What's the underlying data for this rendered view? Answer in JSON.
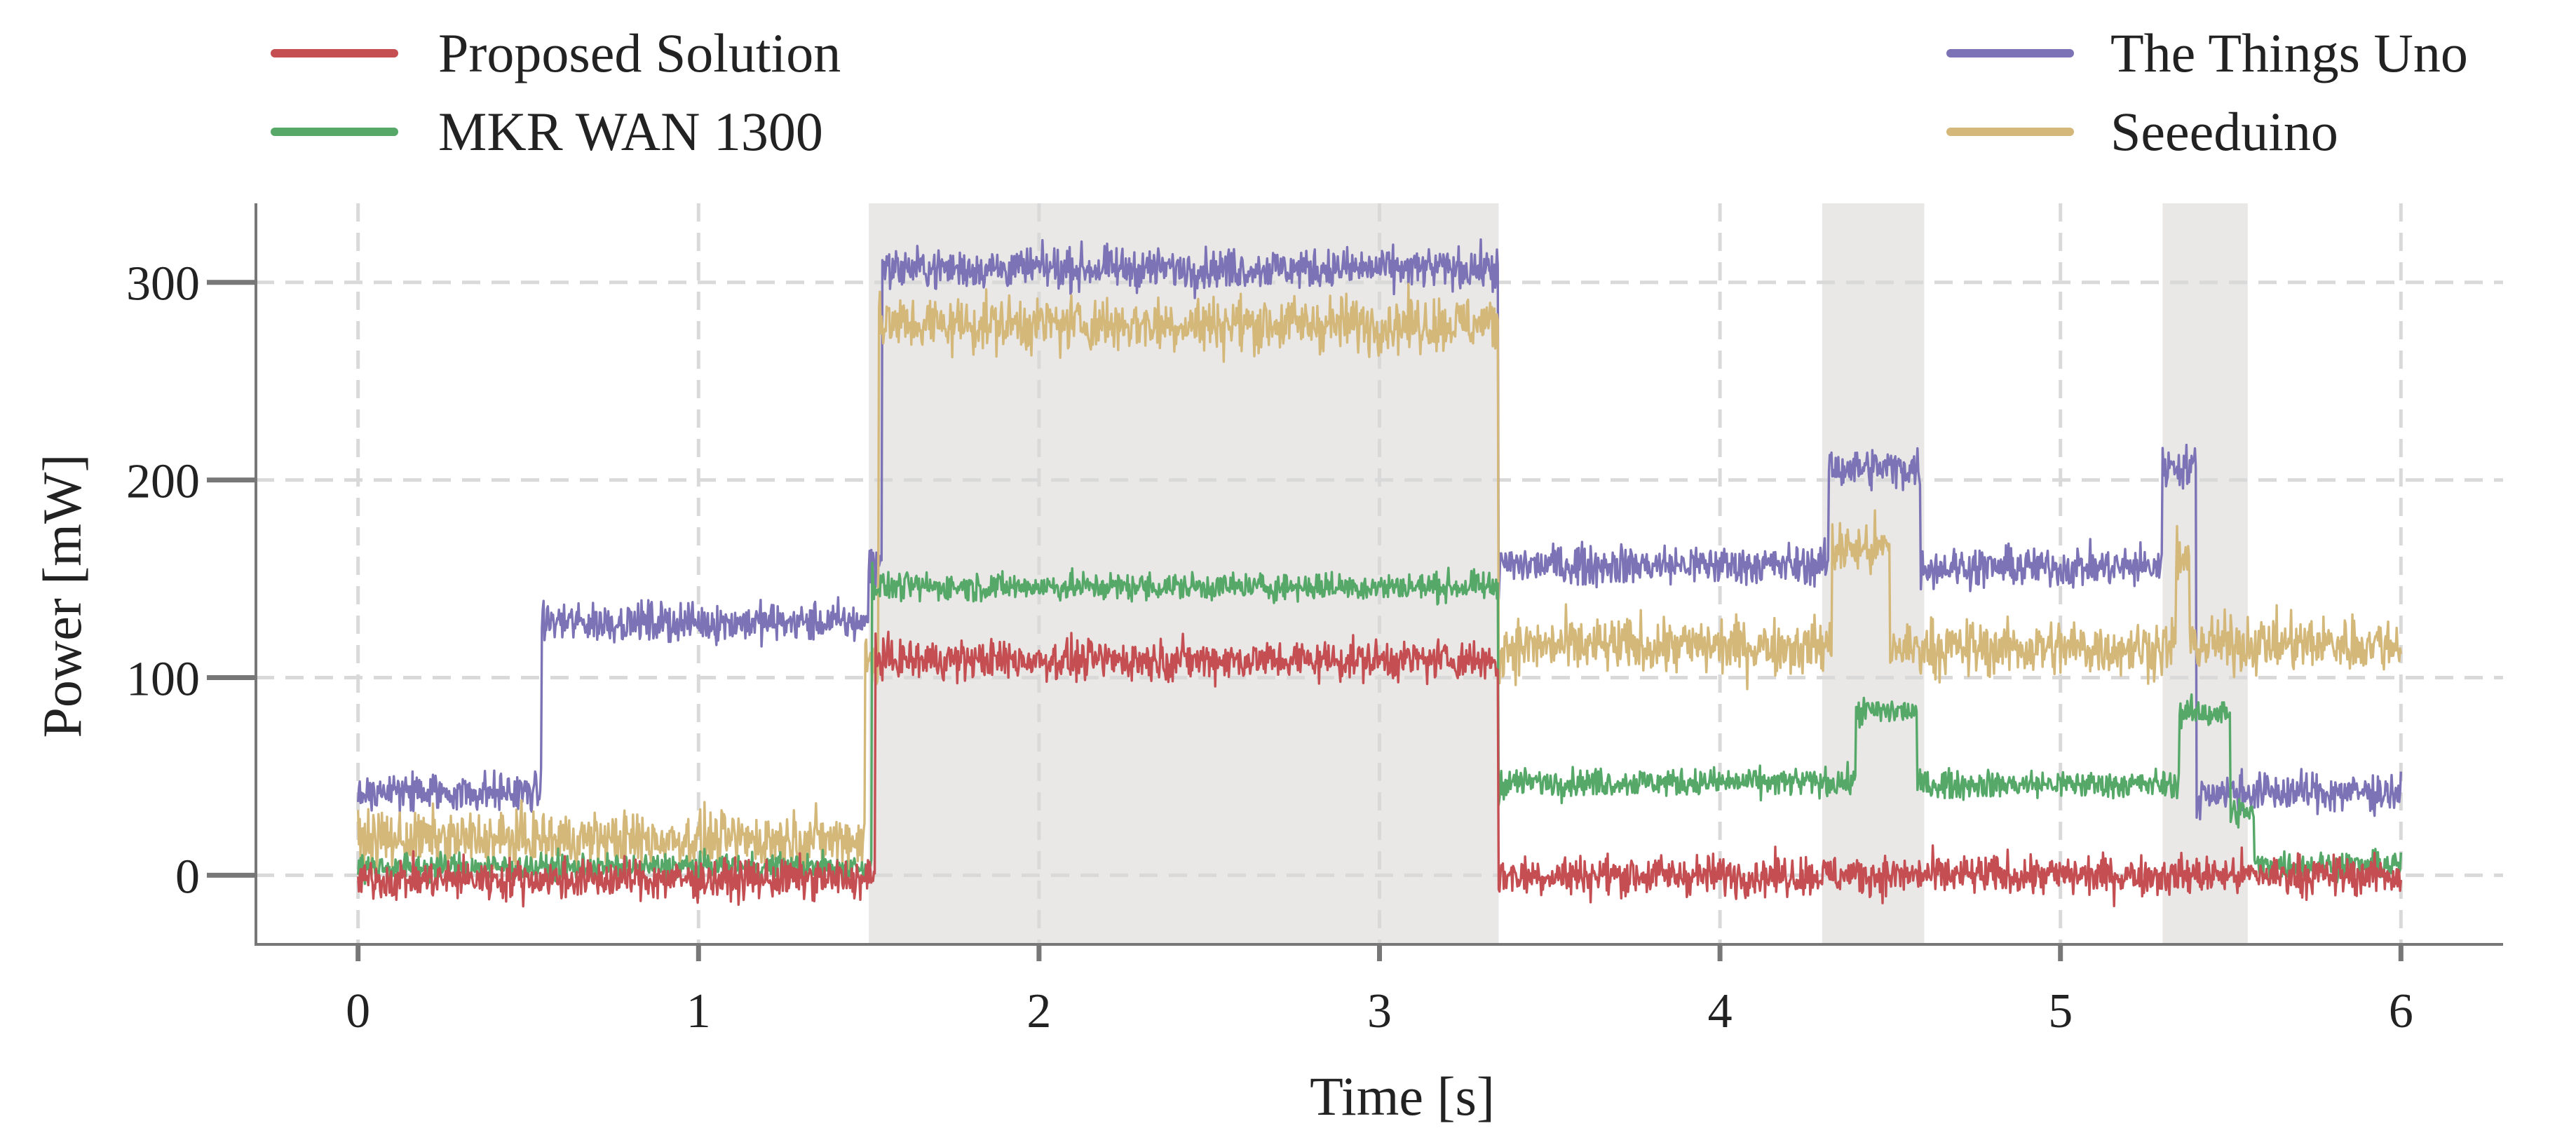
{
  "chart_data": {
    "type": "line",
    "title": "",
    "xlabel": "Time [s]",
    "ylabel": "Power [mW]",
    "xlim": [
      -0.3,
      6.3
    ],
    "ylim": [
      -35,
      340
    ],
    "xticks": [
      0,
      1,
      2,
      3,
      4,
      5,
      6
    ],
    "yticks": [
      0,
      100,
      200,
      300
    ],
    "grid": true,
    "legend_position": "top",
    "shaded_regions": [
      {
        "start": 1.5,
        "end": 3.35,
        "color": "#e9e8e7"
      },
      {
        "start": 4.3,
        "end": 4.6,
        "color": "#e9e8e7"
      },
      {
        "start": 5.3,
        "end": 5.55,
        "color": "#e9e8e7"
      }
    ],
    "series": [
      {
        "name": "The Things Uno",
        "color": "#7b73b5",
        "noise": 5,
        "segments": [
          {
            "start": 0.0,
            "end": 0.54,
            "level": 42
          },
          {
            "start": 0.54,
            "end": 1.5,
            "level": 128
          },
          {
            "start": 1.5,
            "end": 1.54,
            "level": 158
          },
          {
            "start": 1.54,
            "end": 3.35,
            "level": 307
          },
          {
            "start": 3.35,
            "end": 4.32,
            "level": 157
          },
          {
            "start": 4.32,
            "end": 4.59,
            "level": 206
          },
          {
            "start": 4.59,
            "end": 5.3,
            "level": 156
          },
          {
            "start": 5.3,
            "end": 5.4,
            "level": 207
          },
          {
            "start": 5.4,
            "end": 6.0,
            "level": 42
          }
        ]
      },
      {
        "name": "Seeeduino",
        "color": "#d4b87a",
        "noise": 7,
        "segments": [
          {
            "start": 0.0,
            "end": 1.49,
            "level": 18
          },
          {
            "start": 1.49,
            "end": 1.53,
            "level": 108
          },
          {
            "start": 1.53,
            "end": 3.35,
            "level": 279
          },
          {
            "start": 3.35,
            "end": 4.33,
            "level": 116
          },
          {
            "start": 4.33,
            "end": 4.5,
            "level": 165
          },
          {
            "start": 4.5,
            "end": 5.34,
            "level": 115
          },
          {
            "start": 5.34,
            "end": 5.38,
            "level": 160
          },
          {
            "start": 5.38,
            "end": 6.0,
            "level": 117
          }
        ]
      },
      {
        "name": "MKR WAN 1300",
        "color": "#55a868",
        "noise": 3.5,
        "segments": [
          {
            "start": 0.0,
            "end": 1.51,
            "level": 4
          },
          {
            "start": 1.51,
            "end": 3.35,
            "level": 146
          },
          {
            "start": 3.35,
            "end": 4.4,
            "level": 47
          },
          {
            "start": 4.4,
            "end": 4.58,
            "level": 83
          },
          {
            "start": 4.58,
            "end": 5.35,
            "level": 46
          },
          {
            "start": 5.35,
            "end": 5.5,
            "level": 82
          },
          {
            "start": 5.5,
            "end": 5.57,
            "level": 32
          },
          {
            "start": 5.57,
            "end": 6.0,
            "level": 5
          }
        ]
      },
      {
        "name": "Proposed Solution",
        "color": "#c44e52",
        "noise": 5,
        "segments": [
          {
            "start": 0.0,
            "end": 1.52,
            "level": -2
          },
          {
            "start": 1.52,
            "end": 3.35,
            "level": 109
          },
          {
            "start": 3.35,
            "end": 6.0,
            "level": 0
          }
        ]
      }
    ],
    "legend": [
      {
        "label": "Proposed Solution",
        "color": "#c44e52"
      },
      {
        "label": "MKR WAN 1300",
        "color": "#55a868"
      },
      {
        "label": "The Things Uno",
        "color": "#7b73b5"
      },
      {
        "label": "Seeeduino",
        "color": "#d4b87a"
      }
    ]
  }
}
